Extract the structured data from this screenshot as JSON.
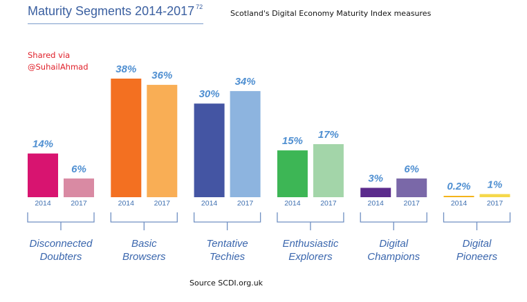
{
  "header": {
    "title": "Maturity Segments 2014-2017",
    "title_superscript": "72",
    "subtitle": "Scotland's Digital Economy Maturity Index measures"
  },
  "watermark": {
    "line1": "Shared via",
    "line2": "@SuhailAhmad"
  },
  "footer": {
    "source": "Source SCDI.org.uk"
  },
  "chart_data": {
    "type": "bar",
    "title": "Maturity Segments 2014-2017",
    "xlabel": "",
    "ylabel": "",
    "ylim": [
      0,
      40
    ],
    "grid": false,
    "legend": "none",
    "unit": "%",
    "years": [
      "2014",
      "2017"
    ],
    "categories": [
      {
        "lines": [
          "Disconnected",
          "Doubters"
        ],
        "colors": [
          "#d81470",
          "#d98aa3"
        ]
      },
      {
        "lines": [
          "Basic",
          "Browsers"
        ],
        "colors": [
          "#f37021",
          "#f9ae55"
        ]
      },
      {
        "lines": [
          "Tentative",
          "Techies"
        ],
        "colors": [
          "#4455a3",
          "#8db4df"
        ]
      },
      {
        "lines": [
          "Enthusiastic",
          "Explorers"
        ],
        "colors": [
          "#3db655",
          "#a3d5a9"
        ]
      },
      {
        "lines": [
          "Digital",
          "Champions"
        ],
        "colors": [
          "#5b2b8c",
          "#7a68a8"
        ]
      },
      {
        "lines": [
          "Digital",
          "Pioneers"
        ],
        "colors": [
          "#f4b41a",
          "#f5d84a"
        ]
      }
    ],
    "series": [
      {
        "name": "2014",
        "values": [
          14,
          38,
          30,
          15,
          3,
          0.2
        ],
        "labels": [
          "14%",
          "38%",
          "30%",
          "15%",
          "3%",
          "0.2%"
        ]
      },
      {
        "name": "2017",
        "values": [
          6,
          36,
          34,
          17,
          6,
          1
        ],
        "labels": [
          "6%",
          "36%",
          "34%",
          "17%",
          "6%",
          "1%"
        ]
      }
    ]
  }
}
